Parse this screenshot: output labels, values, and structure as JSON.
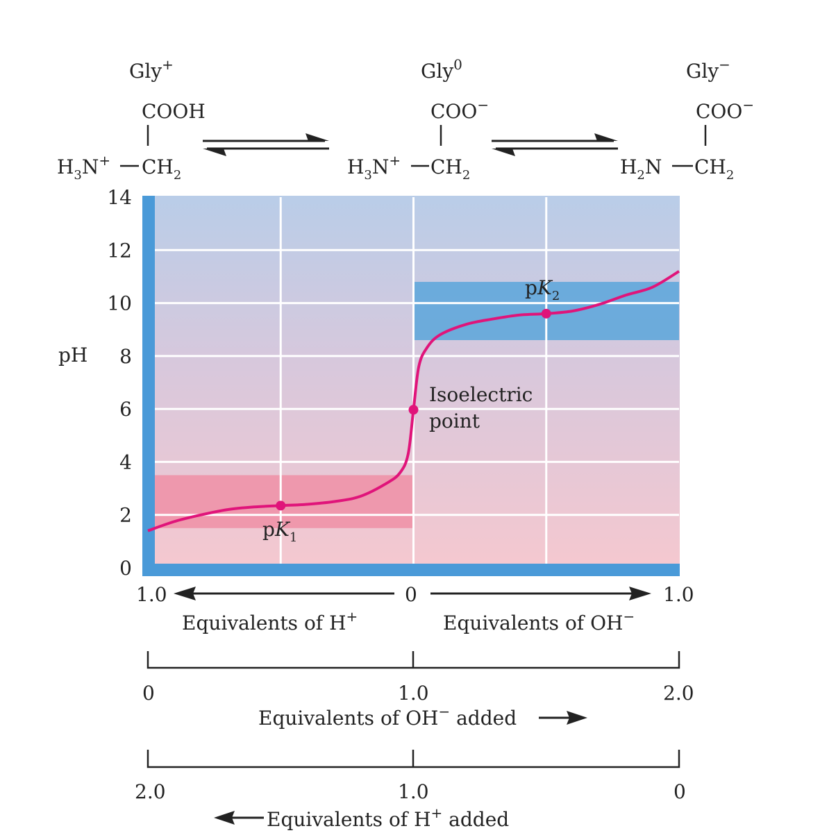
{
  "species": [
    {
      "name": "Gly",
      "charge": "+",
      "top_group": "COOH",
      "amine": "H",
      "amine_sub": "3",
      "amine_rest": "N",
      "amine_charge": "+",
      "carbon": "CH",
      "carbon_sub": "2"
    },
    {
      "name": "Gly",
      "charge": "0",
      "top_group": "COO",
      "top_charge": "−",
      "amine": "H",
      "amine_sub": "3",
      "amine_rest": "N",
      "amine_charge": "+",
      "carbon": "CH",
      "carbon_sub": "2"
    },
    {
      "name": "Gly",
      "charge": "−",
      "top_group": "COO",
      "top_charge": "−",
      "amine": "H",
      "amine_sub": "2",
      "amine_rest": "N",
      "amine_charge": "",
      "carbon": "CH",
      "carbon_sub": "2"
    }
  ],
  "colors": {
    "curve": "#e0147a",
    "left_bar": "#4a9ad8",
    "pk_band_low": "#ef8fa6",
    "pk_band_high": "#5aa6db",
    "bg_top": "#b9cde8",
    "bg_bottom": "#f6c8cf",
    "grid": "#ffffff",
    "text": "#222222"
  },
  "chart_data": {
    "type": "line",
    "ylabel": "pH",
    "ylim": [
      0,
      14
    ],
    "yticks": [
      0,
      2,
      4,
      6,
      8,
      10,
      12,
      14
    ],
    "xlim": [
      0,
      2
    ],
    "grid": true,
    "series": [
      {
        "x": [
          0,
          0.1,
          0.2,
          0.3,
          0.4,
          0.5,
          0.6,
          0.7,
          0.8,
          0.9,
          0.95,
          0.98,
          1.0,
          1.02,
          1.05,
          1.1,
          1.2,
          1.3,
          1.4,
          1.5,
          1.6,
          1.7,
          1.8,
          1.9,
          2.0
        ],
        "y": [
          1.4,
          1.75,
          2.0,
          2.2,
          2.3,
          2.35,
          2.4,
          2.5,
          2.7,
          3.2,
          3.6,
          4.3,
          5.97,
          7.6,
          8.3,
          8.8,
          9.2,
          9.4,
          9.55,
          9.6,
          9.7,
          9.95,
          10.3,
          10.6,
          11.2
        ]
      }
    ],
    "pk1": {
      "x": 0.5,
      "y": 2.35,
      "label_main": "p",
      "label_k": "K",
      "label_sub": "1",
      "band": [
        1.5,
        3.5
      ]
    },
    "pk2": {
      "x": 1.5,
      "y": 9.6,
      "label_main": "p",
      "label_k": "K",
      "label_sub": "2",
      "band": [
        8.6,
        10.8
      ]
    },
    "isoelectric": {
      "x": 1.0,
      "y": 5.97,
      "label_line1": "Isoelectric",
      "label_line2": "point"
    },
    "top_axis": {
      "left": "1.0",
      "center": "0",
      "right": "1.0",
      "left_label": "Equivalents of H",
      "left_sup": "+",
      "right_label": "Equivalents of OH",
      "right_sup": "−"
    },
    "axis_oh_added": {
      "ticks": [
        "0",
        "1.0",
        "2.0"
      ],
      "label": "Equivalents of OH",
      "label_sup": "−",
      "label_rest": " added"
    },
    "axis_h_added": {
      "ticks": [
        "2.0",
        "1.0",
        "0"
      ],
      "label": "Equivalents of H",
      "label_sup": "+",
      "label_rest": " added"
    }
  }
}
